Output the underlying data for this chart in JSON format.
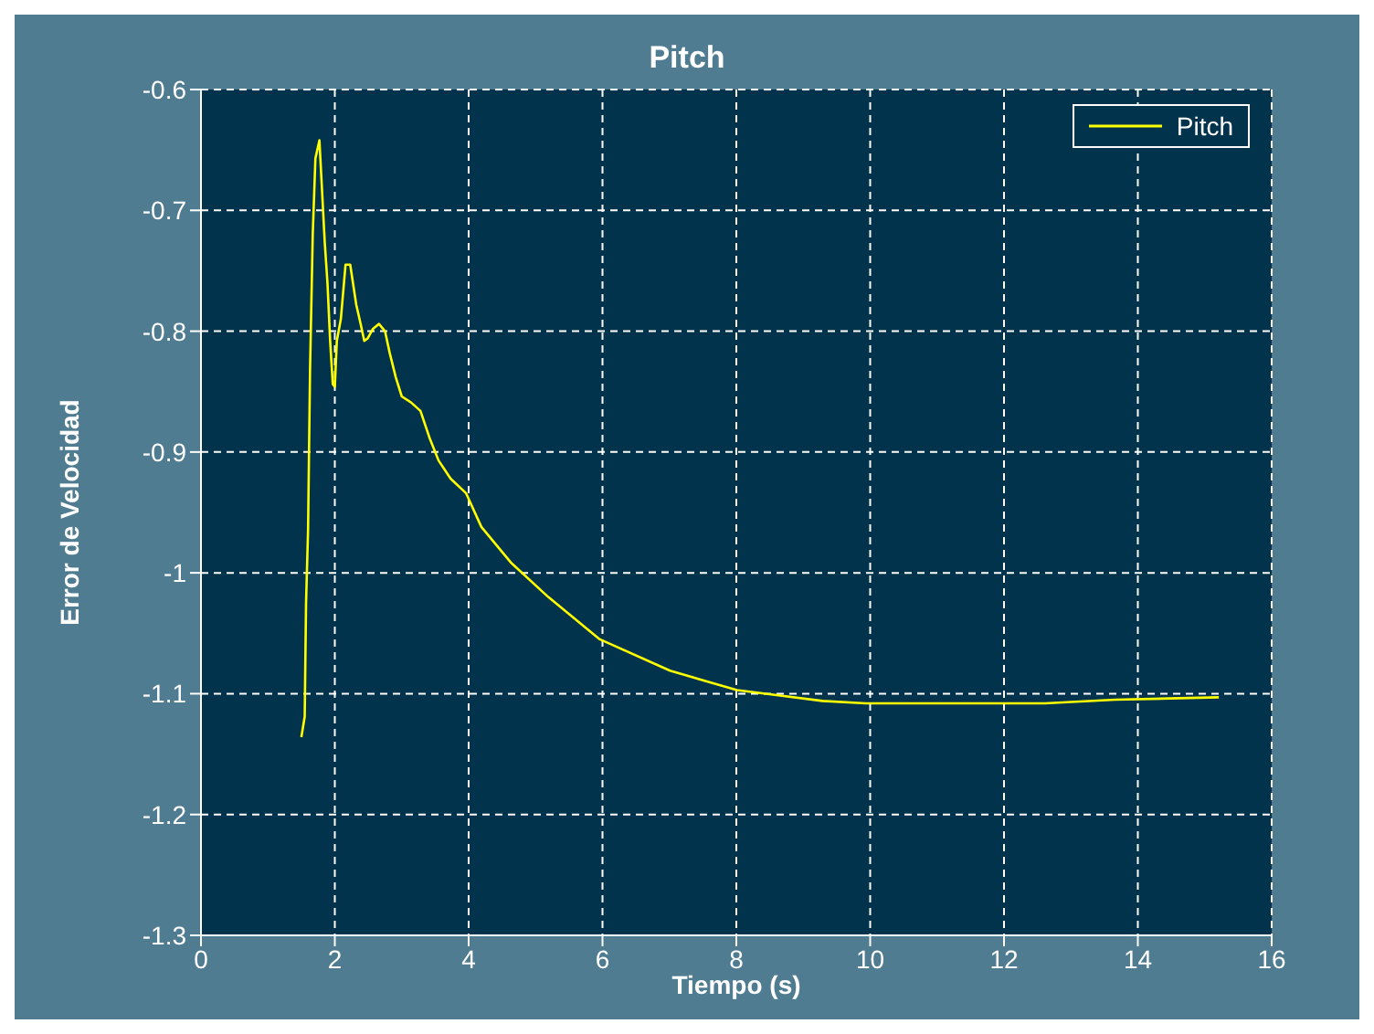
{
  "chart_data": {
    "type": "line",
    "title": "Pitch",
    "xlabel": "Tiempo (s)",
    "ylabel": "Error de Velocidad",
    "series": [
      {
        "name": "Pitch",
        "color": "#ffff00",
        "x": [
          1.5,
          1.55,
          1.57,
          1.6,
          1.63,
          1.67,
          1.71,
          1.77,
          1.8,
          1.85,
          1.89,
          1.93,
          1.97,
          2.0,
          2.03,
          2.09,
          2.16,
          2.23,
          2.32,
          2.39,
          2.44,
          2.49,
          2.57,
          2.66,
          2.75,
          2.82,
          2.91,
          3.0,
          3.14,
          3.28,
          3.42,
          3.55,
          3.73,
          3.96,
          4.19,
          4.64,
          5.19,
          5.74,
          5.96,
          7.01,
          8.01,
          9.29,
          9.93,
          12.61,
          13.66,
          15.21
        ],
        "values": [
          -1.136,
          -1.119,
          -1.025,
          -0.965,
          -0.831,
          -0.72,
          -0.657,
          -0.642,
          -0.674,
          -0.727,
          -0.76,
          -0.808,
          -0.844,
          -0.846,
          -0.808,
          -0.79,
          -0.745,
          -0.745,
          -0.778,
          -0.795,
          -0.808,
          -0.806,
          -0.798,
          -0.794,
          -0.8,
          -0.818,
          -0.838,
          -0.854,
          -0.859,
          -0.866,
          -0.889,
          -0.907,
          -0.922,
          -0.934,
          -0.962,
          -0.992,
          -1.02,
          -1.045,
          -1.055,
          -1.081,
          -1.097,
          -1.106,
          -1.108,
          -1.108,
          -1.105,
          -1.103
        ]
      }
    ],
    "xlim": [
      0,
      16
    ],
    "xticks": [
      0,
      2,
      4,
      6,
      8,
      10,
      12,
      14,
      16
    ],
    "ylim": [
      -1.3,
      -0.6
    ],
    "yticks": [
      -1.3,
      -1.2,
      -1.1,
      -1,
      -0.9,
      -0.8,
      -0.7,
      -0.6
    ],
    "grid": true,
    "legend": "top right",
    "line_style": "solid",
    "marker": "none"
  }
}
